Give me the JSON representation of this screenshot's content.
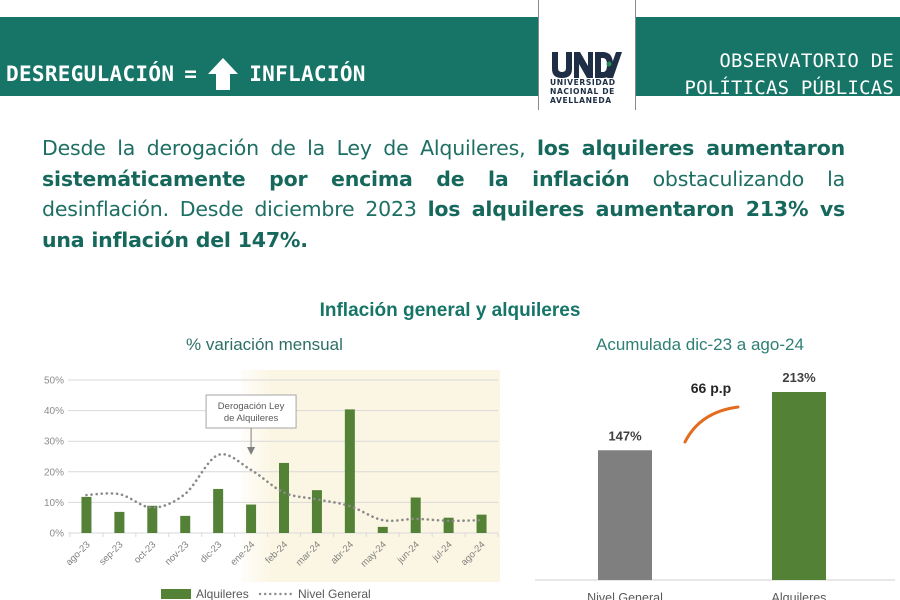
{
  "header": {
    "left_word": "DESREGULACIÓN",
    "equals": "=",
    "arrow_icon": "arrow-up-icon",
    "right_word": "INFLACIÓN",
    "observatory_line1": "OBSERVATORIO DE",
    "observatory_line2": "POLÍTICAS PÚBLICAS",
    "logo": {
      "mark": "UNDAV",
      "line1": "UNIVERSIDAD",
      "line2": "NACIONAL DE",
      "line3": "AVELLANEDA"
    }
  },
  "intro": {
    "p1": "Desde la derogación de la Ley de Alquileres, ",
    "b1": "los alquileres aumentaron sistemáticamente por encima de la inflación",
    "p2": " obstaculizando la desinflación. Desde diciembre 2023 ",
    "b2": "los alquileres aumentaron 213% vs una inflación del 147%."
  },
  "colors": {
    "brand_teal": "#167567",
    "bar_green": "#538135",
    "bar_gray": "#7f7f7f",
    "highlight_bg": "#fbf6e3",
    "arc_orange": "#e36c1f"
  },
  "chart_data": [
    {
      "type": "bar",
      "title": "Inflación general y alquileres",
      "subtitle": "% variación mensual",
      "xlabel": "",
      "ylabel": "",
      "ylim": [
        0,
        50
      ],
      "yticks": [
        "0%",
        "10%",
        "20%",
        "30%",
        "40%",
        "50%"
      ],
      "grid": true,
      "legend_position": "bottom",
      "categories": [
        "ago-23",
        "sep-23",
        "oct-23",
        "nov-23",
        "dic-23",
        "ene-24",
        "feb-24",
        "mar-24",
        "abr-24",
        "may-24",
        "jun-24",
        "jul-24",
        "ago-24"
      ],
      "series": [
        {
          "name": "Alquileres",
          "kind": "bar",
          "values": [
            11.8,
            6.9,
            8.9,
            5.6,
            14.4,
            9.3,
            22.9,
            14.0,
            40.4,
            2.0,
            11.6,
            5.0,
            6.0
          ]
        },
        {
          "name": "Nivel General",
          "kind": "dotted-line",
          "values": [
            12.4,
            12.7,
            8.3,
            12.8,
            25.5,
            20.6,
            13.2,
            11.0,
            8.8,
            4.2,
            4.6,
            4.0,
            4.2
          ]
        }
      ],
      "annotation": {
        "text_line1": "Derogación Ley",
        "text_line2": "de Alquileres",
        "points_to": "ene-24"
      },
      "shaded_region": {
        "from": "ene-24",
        "to": "ago-24"
      }
    },
    {
      "type": "bar",
      "subtitle": "Acumulada dic-23 a ago-24",
      "categories": [
        "Nivel General",
        "Alquileres"
      ],
      "values": [
        147,
        213
      ],
      "value_labels": [
        "147%",
        "213%"
      ],
      "annotation": "66 p.p",
      "ylim": [
        0,
        250
      ]
    }
  ]
}
